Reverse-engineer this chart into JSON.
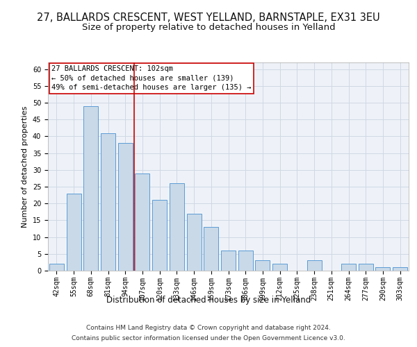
{
  "title_line1": "27, BALLARDS CRESCENT, WEST YELLAND, BARNSTAPLE, EX31 3EU",
  "title_line2": "Size of property relative to detached houses in Yelland",
  "xlabel": "Distribution of detached houses by size in Yelland",
  "ylabel": "Number of detached properties",
  "categories": [
    "42sqm",
    "55sqm",
    "68sqm",
    "81sqm",
    "94sqm",
    "107sqm",
    "120sqm",
    "133sqm",
    "146sqm",
    "159sqm",
    "173sqm",
    "186sqm",
    "199sqm",
    "212sqm",
    "225sqm",
    "238sqm",
    "251sqm",
    "264sqm",
    "277sqm",
    "290sqm",
    "303sqm"
  ],
  "values": [
    2,
    23,
    49,
    41,
    38,
    29,
    21,
    26,
    17,
    13,
    6,
    6,
    3,
    2,
    0,
    3,
    0,
    2,
    2,
    1,
    1
  ],
  "bar_color": "#c9d9e8",
  "bar_edge_color": "#5b9bd5",
  "vline_x": 4.5,
  "vline_color": "#cc0000",
  "annotation_title": "27 BALLARDS CRESCENT: 102sqm",
  "annotation_line1": "← 50% of detached houses are smaller (139)",
  "annotation_line2": "49% of semi-detached houses are larger (135) →",
  "annotation_box_color": "#ffffff",
  "annotation_box_edge": "#cc0000",
  "ylim": [
    0,
    62
  ],
  "yticks": [
    0,
    5,
    10,
    15,
    20,
    25,
    30,
    35,
    40,
    45,
    50,
    55,
    60
  ],
  "grid_color": "#d0d8e4",
  "bg_color": "#eef2f8",
  "footer_line1": "Contains HM Land Registry data © Crown copyright and database right 2024.",
  "footer_line2": "Contains public sector information licensed under the Open Government Licence v3.0.",
  "title1_fontsize": 10.5,
  "title2_fontsize": 9.5,
  "xlabel_fontsize": 8.5,
  "ylabel_fontsize": 8,
  "tick_fontsize": 7,
  "footer_fontsize": 6.5,
  "annot_fontsize": 7.5
}
